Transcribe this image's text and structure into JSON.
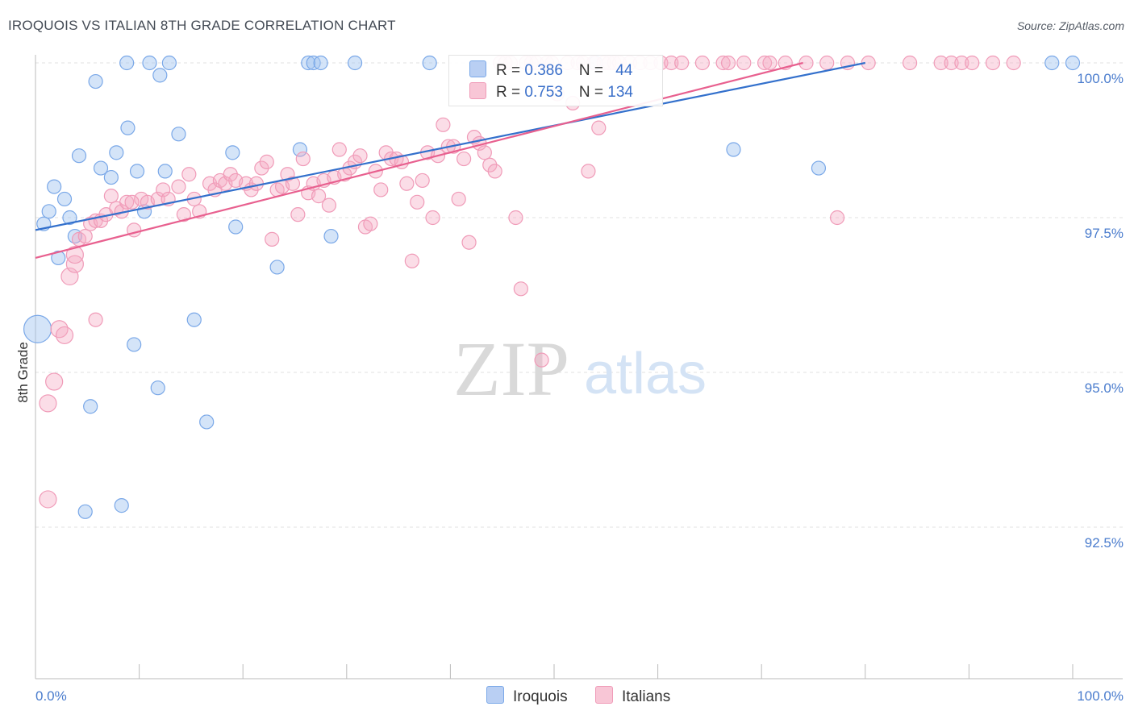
{
  "header": {
    "title": "IROQUOIS VS ITALIAN 8TH GRADE CORRELATION CHART",
    "source": "Source: ZipAtlas.com"
  },
  "watermark": {
    "zip": "ZIP",
    "atlas": "atlas"
  },
  "legend": {
    "rows": [
      {
        "r_label": "R = ",
        "r_value": "0.386",
        "n_label": "N = ",
        "n_value": "44"
      },
      {
        "r_label": "R = ",
        "r_value": "0.753",
        "n_label": "N = ",
        "n_value": "134"
      }
    ]
  },
  "chart_data": {
    "type": "scatter",
    "title": "IROQUOIS VS ITALIAN 8TH GRADE CORRELATION CHART",
    "xlabel": "",
    "ylabel": "8th Grade",
    "xlim": [
      0,
      100
    ],
    "ylim": [
      90.2,
      100.4
    ],
    "x_tick_labels": [
      "0.0%",
      "100.0%"
    ],
    "y_ticks": [
      92.5,
      95.0,
      97.5,
      100.0
    ],
    "y_tick_labels": [
      "92.5%",
      "95.0%",
      "97.5%",
      "100.0%"
    ],
    "colors": {
      "iroquois": "#7aa8e8",
      "iroquois_line": "#3370cc",
      "italians": "#f09bb8",
      "italians_line": "#e8608f",
      "tick_text": "#4a7ccd"
    },
    "series": [
      {
        "name": "Iroquois",
        "r": 0.386,
        "n": 44,
        "trend": [
          [
            0,
            97.3
          ],
          [
            80,
            100.0
          ]
        ],
        "points": [
          [
            0.8,
            97.4
          ],
          [
            1.3,
            97.6
          ],
          [
            1.8,
            98.0
          ],
          [
            2.2,
            96.85
          ],
          [
            2.8,
            97.8
          ],
          [
            3.3,
            97.5
          ],
          [
            3.8,
            97.2
          ],
          [
            4.2,
            98.5
          ],
          [
            4.8,
            92.75
          ],
          [
            5.3,
            94.45
          ],
          [
            5.8,
            99.7
          ],
          [
            6.3,
            98.3
          ],
          [
            7.3,
            98.15
          ],
          [
            7.8,
            98.55
          ],
          [
            8.3,
            92.85
          ],
          [
            8.8,
            100.0
          ],
          [
            8.9,
            98.95
          ],
          [
            9.5,
            95.45
          ],
          [
            9.8,
            98.25
          ],
          [
            10.5,
            97.6
          ],
          [
            11.0,
            100.0
          ],
          [
            11.8,
            94.75
          ],
          [
            12.0,
            99.8
          ],
          [
            12.5,
            98.25
          ],
          [
            12.9,
            100.0
          ],
          [
            13.8,
            98.85
          ],
          [
            15.3,
            95.85
          ],
          [
            16.5,
            94.2
          ],
          [
            19.0,
            98.55
          ],
          [
            19.3,
            97.35
          ],
          [
            23.3,
            96.7
          ],
          [
            25.5,
            98.6
          ],
          [
            26.3,
            100.0
          ],
          [
            26.8,
            100.0
          ],
          [
            27.5,
            100.0
          ],
          [
            28.5,
            97.2
          ],
          [
            30.8,
            100.0
          ],
          [
            38.0,
            100.0
          ],
          [
            54.0,
            100.0
          ],
          [
            67.3,
            98.6
          ],
          [
            75.5,
            98.3
          ],
          [
            98.0,
            100.0
          ],
          [
            100.0,
            100.0
          ],
          [
            0.2,
            95.7
          ]
        ]
      },
      {
        "name": "Italians",
        "r": 0.753,
        "n": 134,
        "trend": [
          [
            0,
            96.85
          ],
          [
            74,
            100.0
          ]
        ],
        "points": [
          [
            1.2,
            94.5
          ],
          [
            1.8,
            94.85
          ],
          [
            2.3,
            95.7
          ],
          [
            2.8,
            95.6
          ],
          [
            3.3,
            96.55
          ],
          [
            3.8,
            96.75
          ],
          [
            4.2,
            97.15
          ],
          [
            4.8,
            97.2
          ],
          [
            5.3,
            97.4
          ],
          [
            5.8,
            97.45
          ],
          [
            6.3,
            97.45
          ],
          [
            6.8,
            97.55
          ],
          [
            7.3,
            97.85
          ],
          [
            7.8,
            97.65
          ],
          [
            8.3,
            97.6
          ],
          [
            8.8,
            97.75
          ],
          [
            9.5,
            97.3
          ],
          [
            10.2,
            97.8
          ],
          [
            10.8,
            97.75
          ],
          [
            11.8,
            97.8
          ],
          [
            12.3,
            97.95
          ],
          [
            12.8,
            97.8
          ],
          [
            13.8,
            98.0
          ],
          [
            14.3,
            97.55
          ],
          [
            14.8,
            98.2
          ],
          [
            15.3,
            97.8
          ],
          [
            15.8,
            97.6
          ],
          [
            16.8,
            98.05
          ],
          [
            17.3,
            97.95
          ],
          [
            17.8,
            98.1
          ],
          [
            18.3,
            98.05
          ],
          [
            18.8,
            98.2
          ],
          [
            19.3,
            98.1
          ],
          [
            20.3,
            98.05
          ],
          [
            20.8,
            97.95
          ],
          [
            21.3,
            98.05
          ],
          [
            21.8,
            98.3
          ],
          [
            22.3,
            98.4
          ],
          [
            22.8,
            97.15
          ],
          [
            23.3,
            97.95
          ],
          [
            23.8,
            98.0
          ],
          [
            24.3,
            98.2
          ],
          [
            24.8,
            98.05
          ],
          [
            25.3,
            97.55
          ],
          [
            25.8,
            98.45
          ],
          [
            26.3,
            97.9
          ],
          [
            26.8,
            98.05
          ],
          [
            27.3,
            97.85
          ],
          [
            27.8,
            98.1
          ],
          [
            28.3,
            97.7
          ],
          [
            28.8,
            98.15
          ],
          [
            29.3,
            98.6
          ],
          [
            29.8,
            98.2
          ],
          [
            30.3,
            98.3
          ],
          [
            30.8,
            98.4
          ],
          [
            31.3,
            98.5
          ],
          [
            31.8,
            97.35
          ],
          [
            32.3,
            97.4
          ],
          [
            32.8,
            98.25
          ],
          [
            33.3,
            97.95
          ],
          [
            33.8,
            98.55
          ],
          [
            34.3,
            98.45
          ],
          [
            34.8,
            98.45
          ],
          [
            35.3,
            98.4
          ],
          [
            35.8,
            98.05
          ],
          [
            36.3,
            96.8
          ],
          [
            36.8,
            97.75
          ],
          [
            37.3,
            98.1
          ],
          [
            37.8,
            98.55
          ],
          [
            38.3,
            97.5
          ],
          [
            38.8,
            98.5
          ],
          [
            39.3,
            99.0
          ],
          [
            39.8,
            98.65
          ],
          [
            40.3,
            98.65
          ],
          [
            40.8,
            97.8
          ],
          [
            41.3,
            98.45
          ],
          [
            41.8,
            97.1
          ],
          [
            42.3,
            98.8
          ],
          [
            42.8,
            98.7
          ],
          [
            43.3,
            98.55
          ],
          [
            43.8,
            98.35
          ],
          [
            44.3,
            98.25
          ],
          [
            44.8,
            100.0
          ],
          [
            45.3,
            100.0
          ],
          [
            45.8,
            100.0
          ],
          [
            46.3,
            97.5
          ],
          [
            46.8,
            96.35
          ],
          [
            47.3,
            100.0
          ],
          [
            47.8,
            100.0
          ],
          [
            48.3,
            100.0
          ],
          [
            48.8,
            95.2
          ],
          [
            49.3,
            100.0
          ],
          [
            49.8,
            100.0
          ],
          [
            50.3,
            99.5
          ],
          [
            51.3,
            100.0
          ],
          [
            51.8,
            99.35
          ],
          [
            52.3,
            100.0
          ],
          [
            52.8,
            100.0
          ],
          [
            53.3,
            98.25
          ],
          [
            53.8,
            100.0
          ],
          [
            54.3,
            98.95
          ],
          [
            54.8,
            100.0
          ],
          [
            55.3,
            100.0
          ],
          [
            55.8,
            100.0
          ],
          [
            56.3,
            100.0
          ],
          [
            57.3,
            100.0
          ],
          [
            58.3,
            100.0
          ],
          [
            59.3,
            100.0
          ],
          [
            60.3,
            100.0
          ],
          [
            61.3,
            100.0
          ],
          [
            62.3,
            100.0
          ],
          [
            64.3,
            100.0
          ],
          [
            66.3,
            100.0
          ],
          [
            68.3,
            100.0
          ],
          [
            70.3,
            100.0
          ],
          [
            72.3,
            100.0
          ],
          [
            74.3,
            100.0
          ],
          [
            76.3,
            100.0
          ],
          [
            77.3,
            97.5
          ],
          [
            78.3,
            100.0
          ],
          [
            80.3,
            100.0
          ],
          [
            84.3,
            100.0
          ],
          [
            87.3,
            100.0
          ],
          [
            88.3,
            100.0
          ],
          [
            89.3,
            100.0
          ],
          [
            90.3,
            100.0
          ],
          [
            92.3,
            100.0
          ],
          [
            94.3,
            100.0
          ],
          [
            1.2,
            92.95
          ],
          [
            3.8,
            96.9
          ],
          [
            5.8,
            95.85
          ],
          [
            9.3,
            97.75
          ],
          [
            66.8,
            100.0
          ],
          [
            70.8,
            100.0
          ]
        ]
      }
    ]
  }
}
